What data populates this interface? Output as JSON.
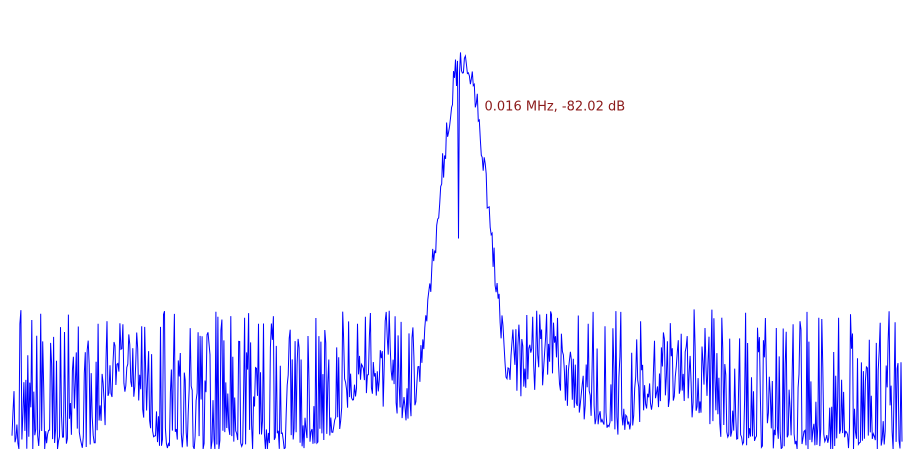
{
  "chart_data": {
    "type": "line",
    "title": "",
    "xlabel": "",
    "ylabel": "",
    "grid": false,
    "legend": "none",
    "line_color": "#0000ff",
    "marker_color": "#8b1a1a",
    "marker": {
      "label": "0.016 MHz, -82.02 dB",
      "x": 0.016,
      "y": -82.02
    },
    "xlim": [
      -1.1,
      1.1
    ],
    "ylim": [
      -180,
      -52
    ],
    "peak": {
      "center": 0.016,
      "level": -63,
      "width": 0.09
    },
    "noise": {
      "floor": -180,
      "mean": -160,
      "spread": 22
    },
    "secondary_bumps": [
      {
        "center": -0.82,
        "level": -148,
        "width": 0.05
      },
      {
        "center": -0.2,
        "level": -150,
        "width": 0.09
      },
      {
        "center": 0.2,
        "level": -146,
        "width": 0.14
      },
      {
        "center": 0.52,
        "level": -156,
        "width": 0.12
      }
    ]
  }
}
